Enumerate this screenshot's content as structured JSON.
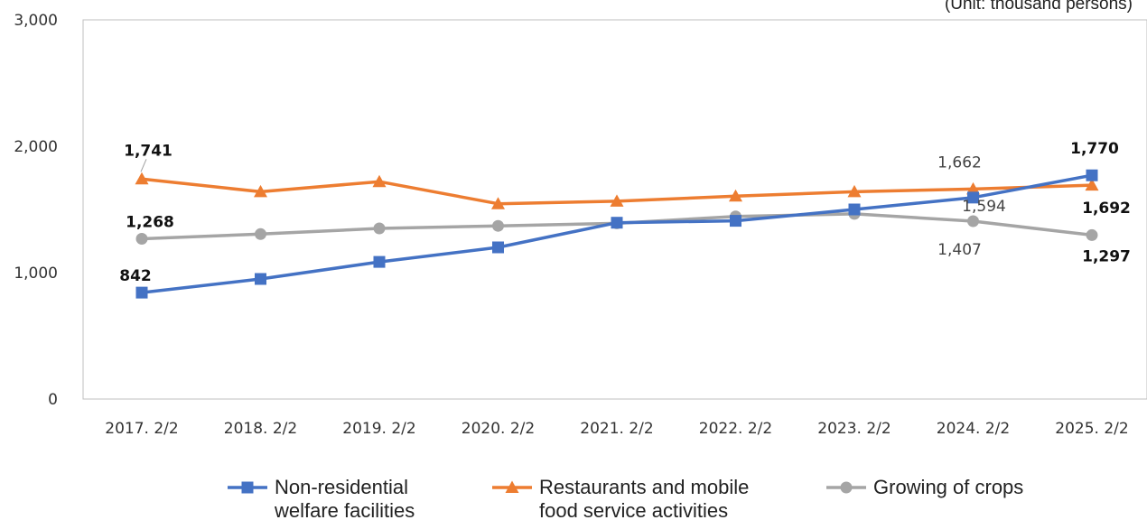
{
  "chart_data": {
    "type": "line",
    "unit_note": "(Unit: thousand persons)",
    "categories": [
      "2017. 2/2",
      "2018. 2/2",
      "2019. 2/2",
      "2020. 2/2",
      "2021. 2/2",
      "2022. 2/2",
      "2023. 2/2",
      "2024. 2/2",
      "2025. 2/2"
    ],
    "ylim": [
      0,
      3000
    ],
    "yticks": [
      0,
      1000,
      2000,
      3000
    ],
    "ytick_labels": [
      "0",
      "1,000",
      "2,000",
      "3,000"
    ],
    "grid": false,
    "legend_position": "bottom",
    "series": [
      {
        "key": "welfare",
        "legend_line1": "Non-residential",
        "legend_line2": "welfare facilities",
        "color": "#4472c4",
        "marker": "square",
        "values": [
          842,
          950,
          1085,
          1200,
          1395,
          1410,
          1500,
          1594,
          1770
        ]
      },
      {
        "key": "restaurants",
        "legend_line1": "Restaurants and mobile",
        "legend_line2": "food service activities",
        "color": "#ed7d31",
        "marker": "triangle",
        "values": [
          1741,
          1640,
          1720,
          1545,
          1565,
          1605,
          1640,
          1662,
          1692
        ]
      },
      {
        "key": "crops",
        "legend_line1": "Growing of crops",
        "legend_line2": "",
        "color": "#a5a5a5",
        "marker": "circle",
        "values": [
          1268,
          1305,
          1350,
          1370,
          1390,
          1445,
          1465,
          1407,
          1297
        ]
      }
    ],
    "data_labels": [
      {
        "text": "1,741",
        "series": "restaurants",
        "index": 0,
        "bold": true
      },
      {
        "text": "1,268",
        "series": "crops",
        "index": 0,
        "bold": true
      },
      {
        "text": "842",
        "series": "welfare",
        "index": 0,
        "bold": true
      },
      {
        "text": "1,662",
        "series": "restaurants",
        "index": 7,
        "bold": false
      },
      {
        "text": "1,594",
        "series": "welfare",
        "index": 7,
        "bold": false
      },
      {
        "text": "1,407",
        "series": "crops",
        "index": 7,
        "bold": false
      },
      {
        "text": "1,770",
        "series": "welfare",
        "index": 8,
        "bold": true
      },
      {
        "text": "1,692",
        "series": "restaurants",
        "index": 8,
        "bold": true
      },
      {
        "text": "1,297",
        "series": "crops",
        "index": 8,
        "bold": true
      }
    ]
  }
}
